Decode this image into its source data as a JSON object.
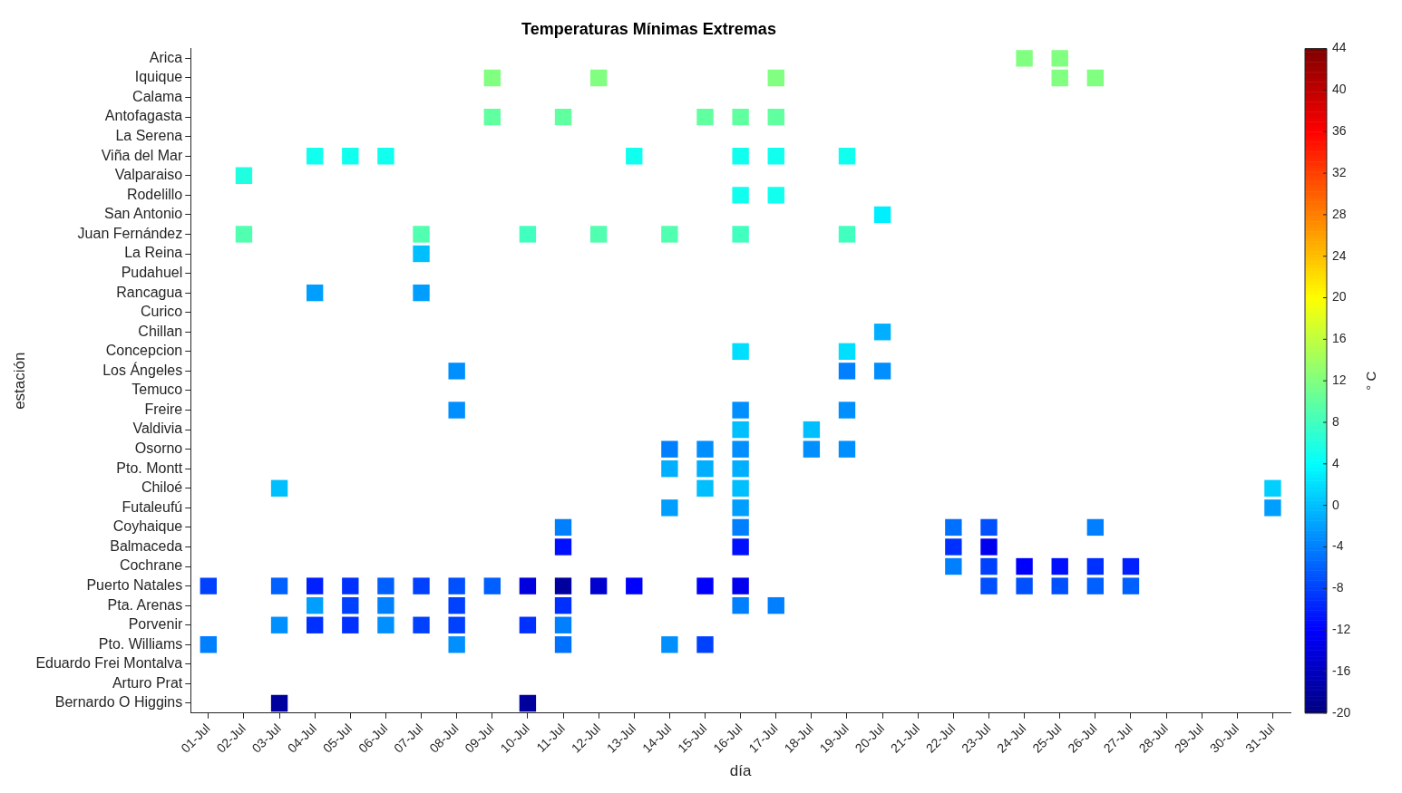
{
  "chart_data": {
    "type": "heatmap",
    "title": "Temperaturas Mínimas Extremas",
    "xlabel": "día",
    "ylabel": "estación",
    "clabel": "° C",
    "categories": [
      "01-Jul",
      "02-Jul",
      "03-Jul",
      "04-Jul",
      "05-Jul",
      "06-Jul",
      "07-Jul",
      "08-Jul",
      "09-Jul",
      "10-Jul",
      "11-Jul",
      "12-Jul",
      "13-Jul",
      "14-Jul",
      "15-Jul",
      "16-Jul",
      "17-Jul",
      "18-Jul",
      "19-Jul",
      "20-Jul",
      "21-Jul",
      "22-Jul",
      "23-Jul",
      "24-Jul",
      "25-Jul",
      "26-Jul",
      "27-Jul",
      "28-Jul",
      "29-Jul",
      "30-Jul",
      "31-Jul"
    ],
    "y_categories": [
      "Arica",
      "Iquique",
      "Calama",
      "Antofagasta",
      "La Serena",
      "Viña del Mar",
      "Valparaiso",
      "Rodelillo",
      "San Antonio",
      "Juan Fernández",
      "La Reina",
      "Pudahuel",
      "Rancagua",
      "Curico",
      "Chillan",
      "Concepcion",
      "Los Ángeles",
      "Temuco",
      "Freire",
      "Valdivia",
      "Osorno",
      "Pto. Montt",
      "Chiloé",
      "Futaleufú",
      "Coyhaique",
      "Balmaceda",
      "Cochrane",
      "Puerto Natales",
      "Pta. Arenas",
      "Porvenir",
      "Pto. Williams",
      "Eduardo Frei Montalva",
      "Arturo Prat",
      "Bernardo O Higgins"
    ],
    "cells": [
      [
        null,
        null,
        null,
        null,
        null,
        null,
        null,
        null,
        null,
        null,
        null,
        null,
        null,
        null,
        null,
        null,
        null,
        null,
        null,
        null,
        null,
        null,
        null,
        12,
        12,
        null,
        null,
        null,
        null,
        null,
        null
      ],
      [
        null,
        null,
        null,
        null,
        null,
        null,
        null,
        null,
        12,
        null,
        null,
        12,
        null,
        null,
        null,
        null,
        12,
        null,
        null,
        null,
        null,
        null,
        null,
        null,
        12,
        12,
        null,
        null,
        null,
        null,
        null
      ],
      [
        null,
        null,
        null,
        null,
        null,
        null,
        null,
        null,
        null,
        null,
        null,
        null,
        null,
        null,
        null,
        null,
        null,
        null,
        null,
        null,
        null,
        null,
        null,
        null,
        null,
        null,
        null,
        null,
        null,
        null,
        null
      ],
      [
        null,
        null,
        null,
        null,
        null,
        null,
        null,
        null,
        10,
        null,
        10,
        null,
        null,
        null,
        10,
        10,
        10,
        null,
        null,
        null,
        null,
        null,
        null,
        null,
        null,
        null,
        null,
        null,
        null,
        null,
        null
      ],
      [
        null,
        null,
        null,
        null,
        null,
        null,
        null,
        null,
        null,
        null,
        null,
        null,
        null,
        null,
        null,
        null,
        null,
        null,
        null,
        null,
        null,
        null,
        null,
        null,
        null,
        null,
        null,
        null,
        null,
        null,
        null
      ],
      [
        null,
        null,
        null,
        5,
        5,
        5,
        null,
        null,
        null,
        null,
        null,
        null,
        5,
        null,
        null,
        5,
        5,
        null,
        5,
        null,
        null,
        null,
        null,
        null,
        null,
        null,
        null,
        null,
        null,
        null,
        null
      ],
      [
        null,
        6,
        null,
        null,
        null,
        null,
        null,
        null,
        null,
        null,
        null,
        null,
        null,
        null,
        null,
        null,
        null,
        null,
        null,
        null,
        null,
        null,
        null,
        null,
        null,
        null,
        null,
        null,
        null,
        null,
        null
      ],
      [
        null,
        null,
        null,
        null,
        null,
        null,
        null,
        null,
        null,
        null,
        null,
        null,
        null,
        null,
        null,
        5,
        5,
        null,
        null,
        null,
        null,
        null,
        null,
        null,
        null,
        null,
        null,
        null,
        null,
        null,
        null
      ],
      [
        null,
        null,
        null,
        null,
        null,
        null,
        null,
        null,
        null,
        null,
        null,
        null,
        null,
        null,
        null,
        null,
        null,
        null,
        null,
        3,
        null,
        null,
        null,
        null,
        null,
        null,
        null,
        null,
        null,
        null,
        null
      ],
      [
        null,
        9,
        null,
        null,
        null,
        null,
        9,
        null,
        null,
        8,
        null,
        9,
        null,
        9,
        null,
        8,
        null,
        null,
        8,
        null,
        null,
        null,
        null,
        null,
        null,
        null,
        null,
        null,
        null,
        null,
        null
      ],
      [
        null,
        null,
        null,
        null,
        null,
        null,
        0,
        null,
        null,
        null,
        null,
        null,
        null,
        null,
        null,
        null,
        null,
        null,
        null,
        null,
        null,
        null,
        null,
        null,
        null,
        null,
        null,
        null,
        null,
        null,
        null
      ],
      [
        null,
        null,
        null,
        null,
        null,
        null,
        null,
        null,
        null,
        null,
        null,
        null,
        null,
        null,
        null,
        null,
        null,
        null,
        null,
        null,
        null,
        null,
        null,
        null,
        null,
        null,
        null,
        null,
        null,
        null,
        null
      ],
      [
        null,
        null,
        null,
        -2,
        null,
        null,
        -2,
        null,
        null,
        null,
        null,
        null,
        null,
        null,
        null,
        null,
        null,
        null,
        null,
        null,
        null,
        null,
        null,
        null,
        null,
        null,
        null,
        null,
        null,
        null,
        null
      ],
      [
        null,
        null,
        null,
        null,
        null,
        null,
        null,
        null,
        null,
        null,
        null,
        null,
        null,
        null,
        null,
        null,
        null,
        null,
        null,
        null,
        null,
        null,
        null,
        null,
        null,
        null,
        null,
        null,
        null,
        null,
        null
      ],
      [
        null,
        null,
        null,
        null,
        null,
        null,
        null,
        null,
        null,
        null,
        null,
        null,
        null,
        null,
        null,
        null,
        null,
        null,
        null,
        -1,
        null,
        null,
        null,
        null,
        null,
        null,
        null,
        null,
        null,
        null,
        null
      ],
      [
        null,
        null,
        null,
        null,
        null,
        null,
        null,
        null,
        null,
        null,
        null,
        null,
        null,
        null,
        null,
        2,
        null,
        null,
        2,
        null,
        null,
        null,
        null,
        null,
        null,
        null,
        null,
        null,
        null,
        null,
        null
      ],
      [
        null,
        null,
        null,
        null,
        null,
        null,
        null,
        -3,
        null,
        null,
        null,
        null,
        null,
        null,
        null,
        null,
        null,
        null,
        -4,
        -3,
        null,
        null,
        null,
        null,
        null,
        null,
        null,
        null,
        null,
        null,
        null
      ],
      [
        null,
        null,
        null,
        null,
        null,
        null,
        null,
        null,
        null,
        null,
        null,
        null,
        null,
        null,
        null,
        null,
        null,
        null,
        null,
        null,
        null,
        null,
        null,
        null,
        null,
        null,
        null,
        null,
        null,
        null,
        null
      ],
      [
        null,
        null,
        null,
        null,
        null,
        null,
        null,
        -3,
        null,
        null,
        null,
        null,
        null,
        null,
        null,
        -3,
        null,
        null,
        -3,
        null,
        null,
        null,
        null,
        null,
        null,
        null,
        null,
        null,
        null,
        null,
        null
      ],
      [
        null,
        null,
        null,
        null,
        null,
        null,
        null,
        null,
        null,
        null,
        null,
        null,
        null,
        null,
        null,
        0,
        null,
        0,
        null,
        null,
        null,
        null,
        null,
        null,
        null,
        null,
        null,
        null,
        null,
        null,
        null
      ],
      [
        null,
        null,
        null,
        null,
        null,
        null,
        null,
        null,
        null,
        null,
        null,
        null,
        null,
        -4,
        -3,
        -3,
        null,
        -3,
        -3,
        null,
        null,
        null,
        null,
        null,
        null,
        null,
        null,
        null,
        null,
        null,
        null
      ],
      [
        null,
        null,
        null,
        null,
        null,
        null,
        null,
        null,
        null,
        null,
        null,
        null,
        null,
        -1,
        -1,
        -1,
        null,
        null,
        null,
        null,
        null,
        null,
        null,
        null,
        null,
        null,
        null,
        null,
        null,
        null,
        null
      ],
      [
        null,
        null,
        0,
        null,
        null,
        null,
        null,
        null,
        null,
        null,
        null,
        null,
        null,
        null,
        0,
        0,
        null,
        null,
        null,
        null,
        null,
        null,
        null,
        null,
        null,
        null,
        null,
        null,
        null,
        null,
        1
      ],
      [
        null,
        null,
        null,
        null,
        null,
        null,
        null,
        null,
        null,
        null,
        null,
        null,
        null,
        -2,
        null,
        -2,
        null,
        null,
        null,
        null,
        null,
        null,
        null,
        null,
        null,
        null,
        null,
        null,
        null,
        null,
        -2
      ],
      [
        null,
        null,
        null,
        null,
        null,
        null,
        null,
        null,
        null,
        null,
        -4,
        null,
        null,
        null,
        null,
        -4,
        null,
        null,
        null,
        null,
        null,
        -5,
        -7,
        null,
        null,
        -4,
        null,
        null,
        null,
        null,
        null
      ],
      [
        null,
        null,
        null,
        null,
        null,
        null,
        null,
        null,
        null,
        null,
        -11,
        null,
        null,
        null,
        null,
        -11,
        null,
        null,
        null,
        null,
        null,
        -9,
        -13,
        null,
        null,
        null,
        null,
        null,
        null,
        null,
        null
      ],
      [
        null,
        null,
        null,
        null,
        null,
        null,
        null,
        null,
        null,
        null,
        null,
        null,
        null,
        null,
        null,
        null,
        null,
        null,
        null,
        null,
        null,
        -4,
        -8,
        -12,
        -11,
        -9,
        -10,
        null,
        null,
        null,
        null
      ],
      [
        -8,
        null,
        -6,
        -10,
        -9,
        -6,
        -8,
        -7,
        -6,
        -14,
        -18,
        -15,
        -12,
        null,
        -12,
        -13,
        null,
        null,
        null,
        null,
        null,
        null,
        -7,
        -7,
        -7,
        -6,
        -6,
        null,
        null,
        null,
        null
      ],
      [
        null,
        null,
        null,
        -2,
        -8,
        -4,
        null,
        -8,
        null,
        null,
        -9,
        null,
        null,
        null,
        null,
        -4,
        -4,
        null,
        null,
        null,
        null,
        null,
        null,
        null,
        null,
        null,
        null,
        null,
        null,
        null,
        null
      ],
      [
        null,
        null,
        -3,
        -9,
        -9,
        -3,
        -8,
        -8,
        null,
        -9,
        -4,
        null,
        null,
        null,
        null,
        null,
        null,
        null,
        null,
        null,
        null,
        null,
        null,
        null,
        null,
        null,
        null,
        null,
        null,
        null,
        null
      ],
      [
        -4,
        null,
        null,
        null,
        null,
        null,
        null,
        -3,
        null,
        null,
        -5,
        null,
        null,
        -3,
        -8,
        null,
        null,
        null,
        null,
        null,
        null,
        null,
        null,
        null,
        null,
        null,
        null,
        null,
        null,
        null,
        null
      ],
      [
        null,
        null,
        null,
        null,
        null,
        null,
        null,
        null,
        null,
        null,
        null,
        null,
        null,
        null,
        null,
        null,
        null,
        null,
        null,
        null,
        null,
        null,
        null,
        null,
        null,
        null,
        null,
        null,
        null,
        null,
        null
      ],
      [
        null,
        null,
        null,
        null,
        null,
        null,
        null,
        null,
        null,
        null,
        null,
        null,
        null,
        null,
        null,
        null,
        null,
        null,
        null,
        null,
        null,
        null,
        null,
        null,
        null,
        null,
        null,
        null,
        null,
        null,
        null
      ],
      [
        null,
        null,
        -18,
        null,
        null,
        null,
        null,
        null,
        null,
        -18,
        null,
        null,
        null,
        null,
        null,
        null,
        null,
        null,
        null,
        null,
        null,
        null,
        null,
        null,
        null,
        null,
        null,
        null,
        null,
        null,
        null
      ]
    ],
    "clim": [
      -20,
      44
    ],
    "cticks": [
      -20,
      -16,
      -12,
      -8,
      -4,
      0,
      4,
      8,
      12,
      16,
      20,
      24,
      28,
      32,
      36,
      40,
      44
    ],
    "grid": false
  }
}
